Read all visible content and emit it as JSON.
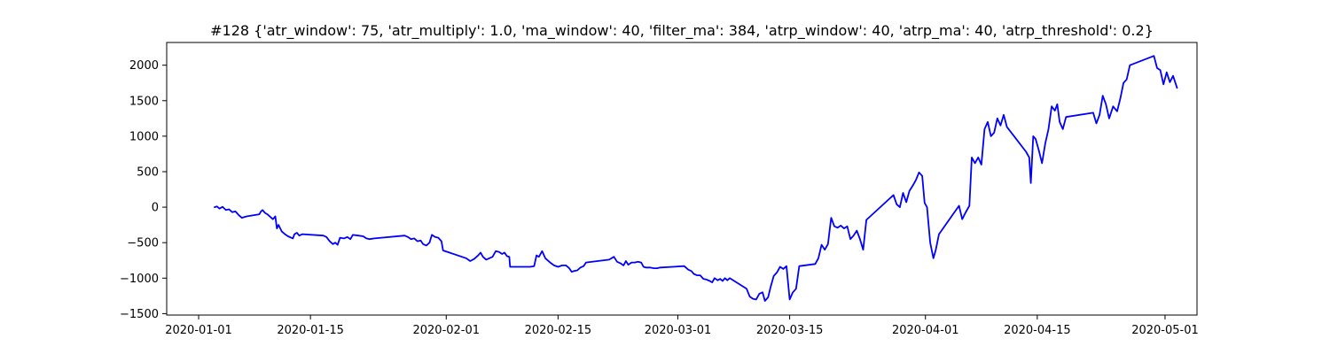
{
  "chart_data": {
    "type": "line",
    "title": "#128 {'atr_window': 75, 'atr_multiply': 1.0, 'ma_window': 40, 'filter_ma': 384, 'atrp_window': 40, 'atrp_ma': 40, 'atrp_threshold': 0.2}",
    "xlabel": "",
    "ylabel": "",
    "xlim": [
      "2019-12-28",
      "2020-05-05"
    ],
    "ylim": [
      -1520,
      2320
    ],
    "x_ticks": [
      "2020-01-01",
      "2020-01-15",
      "2020-02-01",
      "2020-02-15",
      "2020-03-01",
      "2020-03-15",
      "2020-04-01",
      "2020-04-15",
      "2020-05-01"
    ],
    "y_ticks": [
      -1500,
      -1000,
      -500,
      0,
      500,
      1000,
      1500,
      2000
    ],
    "grid": false,
    "series": [
      {
        "color": "#0000ff",
        "points": [
          [
            "2020-01-03",
            0
          ],
          [
            "2020-01-03.3",
            10
          ],
          [
            "2020-01-03.6",
            -20
          ],
          [
            "2020-01-04",
            5
          ],
          [
            "2020-01-04.4",
            -40
          ],
          [
            "2020-01-04.8",
            -30
          ],
          [
            "2020-01-05.2",
            -70
          ],
          [
            "2020-01-05.6",
            -60
          ],
          [
            "2020-01-06",
            -110
          ],
          [
            "2020-01-06.4",
            -150
          ],
          [
            "2020-01-07",
            -130
          ],
          [
            "2020-01-08.6",
            -100
          ],
          [
            "2020-01-08.8",
            -60
          ],
          [
            "2020-01-09",
            -40
          ],
          [
            "2020-01-09.3",
            -80
          ],
          [
            "2020-01-09.6",
            -100
          ],
          [
            "2020-01-10",
            -140
          ],
          [
            "2020-01-10.3",
            -170
          ],
          [
            "2020-01-10.6",
            -130
          ],
          [
            "2020-01-10.8",
            -300
          ],
          [
            "2020-01-11",
            -250
          ],
          [
            "2020-01-11.4",
            -340
          ],
          [
            "2020-01-11.8",
            -380
          ],
          [
            "2020-01-12.2",
            -410
          ],
          [
            "2020-01-12.8",
            -440
          ],
          [
            "2020-01-13",
            -380
          ],
          [
            "2020-01-13.3",
            -360
          ],
          [
            "2020-01-13.6",
            -400
          ],
          [
            "2020-01-14",
            -380
          ],
          [
            "2020-01-16.6",
            -400
          ],
          [
            "2020-01-17",
            -420
          ],
          [
            "2020-01-17.4",
            -480
          ],
          [
            "2020-01-17.8",
            -520
          ],
          [
            "2020-01-18.1",
            -500
          ],
          [
            "2020-01-18.4",
            -530
          ],
          [
            "2020-01-18.7",
            -430
          ],
          [
            "2020-01-19.2",
            -440
          ],
          [
            "2020-01-19.6",
            -420
          ],
          [
            "2020-01-20",
            -450
          ],
          [
            "2020-01-20.3",
            -390
          ],
          [
            "2020-01-21",
            -400
          ],
          [
            "2020-01-21.6",
            -410
          ],
          [
            "2020-01-22",
            -440
          ],
          [
            "2020-01-22.4",
            -450
          ],
          [
            "2020-01-23",
            -440
          ],
          [
            "2020-01-26.8",
            -400
          ],
          [
            "2020-01-27.2",
            -420
          ],
          [
            "2020-01-27.6",
            -450
          ],
          [
            "2020-01-28",
            -440
          ],
          [
            "2020-01-28.4",
            -480
          ],
          [
            "2020-01-28.8",
            -470
          ],
          [
            "2020-01-29.1",
            -520
          ],
          [
            "2020-01-29.5",
            -540
          ],
          [
            "2020-01-29.9",
            -500
          ],
          [
            "2020-01-30.2",
            -390
          ],
          [
            "2020-01-30.6",
            -420
          ],
          [
            "2020-01-31",
            -430
          ],
          [
            "2020-01-31.4",
            -480
          ],
          [
            "2020-01-31.6",
            -610
          ],
          [
            "2020-02-03.5",
            -720
          ],
          [
            "2020-02-04",
            -760
          ],
          [
            "2020-02-04.5",
            -730
          ],
          [
            "2020-02-05",
            -680
          ],
          [
            "2020-02-05.3",
            -640
          ],
          [
            "2020-02-05.6",
            -700
          ],
          [
            "2020-02-06",
            -740
          ],
          [
            "2020-02-06.4",
            -720
          ],
          [
            "2020-02-06.8",
            -700
          ],
          [
            "2020-02-07.2",
            -620
          ],
          [
            "2020-02-07.6",
            -630
          ],
          [
            "2020-02-08",
            -660
          ],
          [
            "2020-02-08.3",
            -640
          ],
          [
            "2020-02-08.6",
            -690
          ],
          [
            "2020-02-08.9",
            -700
          ],
          [
            "2020-02-09",
            -840
          ],
          [
            "2020-02-11.5",
            -840
          ],
          [
            "2020-02-12",
            -830
          ],
          [
            "2020-02-12.3",
            -680
          ],
          [
            "2020-02-12.6",
            -700
          ],
          [
            "2020-02-13",
            -620
          ],
          [
            "2020-02-13.4",
            -720
          ],
          [
            "2020-02-14",
            -780
          ],
          [
            "2020-02-14.5",
            -820
          ],
          [
            "2020-02-15",
            -840
          ],
          [
            "2020-02-15.5",
            -820
          ],
          [
            "2020-02-16",
            -820
          ],
          [
            "2020-02-16.4",
            -860
          ],
          [
            "2020-02-16.7",
            -910
          ],
          [
            "2020-02-17",
            -900
          ],
          [
            "2020-02-17.4",
            -890
          ],
          [
            "2020-02-17.8",
            -850
          ],
          [
            "2020-02-18.2",
            -830
          ],
          [
            "2020-02-18.5",
            -780
          ],
          [
            "2020-02-21.4",
            -740
          ],
          [
            "2020-02-22",
            -700
          ],
          [
            "2020-02-22.4",
            -770
          ],
          [
            "2020-02-22.8",
            -790
          ],
          [
            "2020-02-23.2",
            -820
          ],
          [
            "2020-02-23.5",
            -760
          ],
          [
            "2020-02-23.8",
            -810
          ],
          [
            "2020-02-24.2",
            -780
          ],
          [
            "2020-02-24.6",
            -780
          ],
          [
            "2020-02-25",
            -770
          ],
          [
            "2020-02-25.4",
            -780
          ],
          [
            "2020-02-25.7",
            -840
          ],
          [
            "2020-02-26",
            -850
          ],
          [
            "2020-02-26.5",
            -850
          ],
          [
            "2020-02-27",
            -860
          ],
          [
            "2020-02-27.4",
            -860
          ],
          [
            "2020-02-27.8",
            -850
          ],
          [
            "2020-03-01.8",
            -830
          ],
          [
            "2020-03-02.3",
            -880
          ],
          [
            "2020-03-02.7",
            -900
          ],
          [
            "2020-03-03",
            -940
          ],
          [
            "2020-03-03.4",
            -960
          ],
          [
            "2020-03-03.8",
            -960
          ],
          [
            "2020-03-04.2",
            -1010
          ],
          [
            "2020-03-04.6",
            -1020
          ],
          [
            "2020-03-05",
            -1040
          ],
          [
            "2020-03-05.3",
            -1060
          ],
          [
            "2020-03-05.6",
            -1000
          ],
          [
            "2020-03-06",
            -1030
          ],
          [
            "2020-03-06.3",
            -1010
          ],
          [
            "2020-03-06.6",
            -1040
          ],
          [
            "2020-03-06.9",
            -1000
          ],
          [
            "2020-03-07.2",
            -1030
          ],
          [
            "2020-03-07.5",
            -1000
          ],
          [
            "2020-03-09.6",
            -1150
          ],
          [
            "2020-03-10",
            -1260
          ],
          [
            "2020-03-10.4",
            -1290
          ],
          [
            "2020-03-10.8",
            -1300
          ],
          [
            "2020-03-11.2",
            -1220
          ],
          [
            "2020-03-11.6",
            -1200
          ],
          [
            "2020-03-11.9",
            -1320
          ],
          [
            "2020-03-12.3",
            -1270
          ],
          [
            "2020-03-12.6",
            -1130
          ],
          [
            "2020-03-13",
            -970
          ],
          [
            "2020-03-13.4",
            -920
          ],
          [
            "2020-03-13.8",
            -840
          ],
          [
            "2020-03-14.2",
            -870
          ],
          [
            "2020-03-14.6",
            -830
          ],
          [
            "2020-03-15",
            -1300
          ],
          [
            "2020-03-15.4",
            -1200
          ],
          [
            "2020-03-15.8",
            -1150
          ],
          [
            "2020-03-16.2",
            -830
          ],
          [
            "2020-03-18.2",
            -800
          ],
          [
            "2020-03-18.6",
            -720
          ],
          [
            "2020-03-19",
            -530
          ],
          [
            "2020-03-19.4",
            -600
          ],
          [
            "2020-03-19.8",
            -520
          ],
          [
            "2020-03-20.2",
            -150
          ],
          [
            "2020-03-20.6",
            -270
          ],
          [
            "2020-03-21",
            -290
          ],
          [
            "2020-03-21.4",
            -260
          ],
          [
            "2020-03-21.8",
            -300
          ],
          [
            "2020-03-22.2",
            -270
          ],
          [
            "2020-03-22.6",
            -450
          ],
          [
            "2020-03-23",
            -400
          ],
          [
            "2020-03-23.4",
            -330
          ],
          [
            "2020-03-23.8",
            -450
          ],
          [
            "2020-03-24.2",
            -600
          ],
          [
            "2020-03-24.6",
            -180
          ],
          [
            "2020-03-27.5",
            120
          ],
          [
            "2020-03-28",
            170
          ],
          [
            "2020-03-28.4",
            40
          ],
          [
            "2020-03-28.8",
            0
          ],
          [
            "2020-03-29.2",
            200
          ],
          [
            "2020-03-29.6",
            70
          ],
          [
            "2020-03-30",
            230
          ],
          [
            "2020-03-30.4",
            300
          ],
          [
            "2020-03-30.8",
            380
          ],
          [
            "2020-03-31.2",
            490
          ],
          [
            "2020-03-31.6",
            440
          ],
          [
            "2020-03-31.9",
            60
          ],
          [
            "2020-04-01.2",
            0
          ],
          [
            "2020-04-01.6",
            -500
          ],
          [
            "2020-04-02",
            -720
          ],
          [
            "2020-04-02.3",
            -600
          ],
          [
            "2020-04-02.7",
            -380
          ],
          [
            "2020-04-05.2",
            20
          ],
          [
            "2020-04-05.6",
            -170
          ],
          [
            "2020-04-06",
            -80
          ],
          [
            "2020-04-06.5",
            20
          ],
          [
            "2020-04-06.8",
            700
          ],
          [
            "2020-04-07.2",
            620
          ],
          [
            "2020-04-07.6",
            700
          ],
          [
            "2020-04-08",
            600
          ],
          [
            "2020-04-08.4",
            1100
          ],
          [
            "2020-04-08.8",
            1200
          ],
          [
            "2020-04-09.2",
            1000
          ],
          [
            "2020-04-09.6",
            1050
          ],
          [
            "2020-04-10",
            1250
          ],
          [
            "2020-04-10.4",
            1150
          ],
          [
            "2020-04-10.8",
            1300
          ],
          [
            "2020-04-11.2",
            1130
          ],
          [
            "2020-04-13.6",
            780
          ],
          [
            "2020-04-14",
            700
          ],
          [
            "2020-04-14.2",
            340
          ],
          [
            "2020-04-14.5",
            1000
          ],
          [
            "2020-04-14.8",
            960
          ],
          [
            "2020-04-15.2",
            800
          ],
          [
            "2020-04-15.6",
            620
          ],
          [
            "2020-04-16",
            900
          ],
          [
            "2020-04-16.4",
            1100
          ],
          [
            "2020-04-16.8",
            1420
          ],
          [
            "2020-04-17.2",
            1360
          ],
          [
            "2020-04-17.5",
            1450
          ],
          [
            "2020-04-17.8",
            1200
          ],
          [
            "2020-04-18.2",
            1100
          ],
          [
            "2020-04-18.6",
            1270
          ],
          [
            "2020-04-22",
            1330
          ],
          [
            "2020-04-22.4",
            1180
          ],
          [
            "2020-04-22.8",
            1300
          ],
          [
            "2020-04-23.2",
            1570
          ],
          [
            "2020-04-23.6",
            1450
          ],
          [
            "2020-04-24",
            1250
          ],
          [
            "2020-04-24.5",
            1420
          ],
          [
            "2020-04-25",
            1350
          ],
          [
            "2020-04-25.4",
            1530
          ],
          [
            "2020-04-25.8",
            1750
          ],
          [
            "2020-04-26.2",
            1800
          ],
          [
            "2020-04-26.6",
            2000
          ],
          [
            "2020-04-29.6",
            2130
          ],
          [
            "2020-04-30",
            1960
          ],
          [
            "2020-04-30.4",
            1930
          ],
          [
            "2020-04-30.8",
            1730
          ],
          [
            "2020-05-01.2",
            1900
          ],
          [
            "2020-05-01.6",
            1760
          ],
          [
            "2020-05-02",
            1850
          ],
          [
            "2020-05-02.5",
            1680
          ]
        ]
      }
    ]
  }
}
